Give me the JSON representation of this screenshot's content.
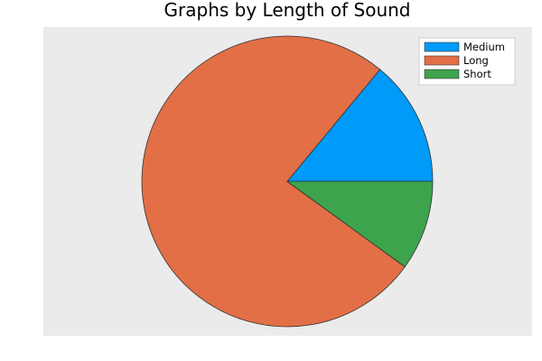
{
  "chart_data": {
    "type": "pie",
    "title": "Graphs by Length of Sound",
    "categories": [
      "Medium",
      "Long",
      "Short"
    ],
    "values": [
      14,
      76,
      10
    ],
    "colors": [
      "#009af9",
      "#e26f46",
      "#3da44d"
    ],
    "legend": {
      "placement": "top-right",
      "entries": [
        "Medium",
        "Long",
        "Short"
      ]
    },
    "plot_background": "#ebebeb",
    "slice_stroke": "#333333",
    "start_angle_deg": 0,
    "direction": "counterclockwise"
  }
}
